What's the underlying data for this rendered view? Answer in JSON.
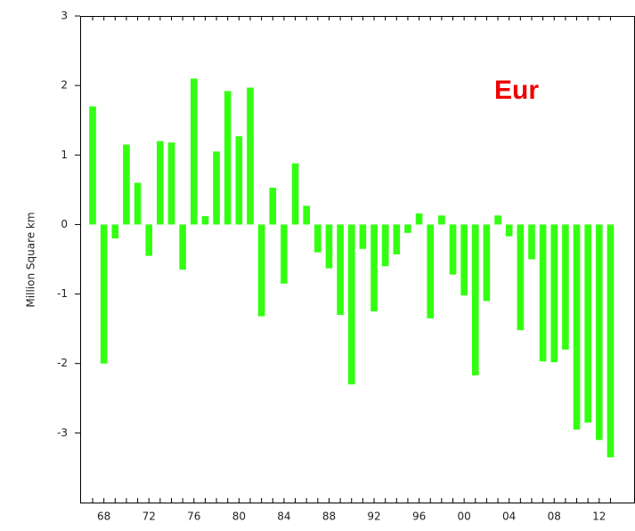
{
  "chart_data": {
    "type": "bar",
    "ylabel": "Million Square km",
    "annotation": "Eur",
    "categories": [
      null,
      "68",
      null,
      null,
      null,
      "72",
      null,
      null,
      null,
      "76",
      null,
      null,
      null,
      "80",
      null,
      null,
      null,
      "84",
      null,
      null,
      null,
      "88",
      null,
      null,
      null,
      "92",
      null,
      null,
      null,
      "96",
      null,
      null,
      null,
      "00",
      null,
      null,
      null,
      "04",
      null,
      null,
      null,
      "08",
      null,
      null,
      null,
      "12",
      null
    ],
    "values": [
      1.7,
      -2.0,
      -0.2,
      1.15,
      0.6,
      -0.45,
      1.2,
      1.18,
      -0.65,
      2.1,
      0.12,
      1.05,
      1.92,
      1.27,
      1.97,
      -1.32,
      0.53,
      -0.85,
      0.88,
      0.27,
      -0.4,
      -0.63,
      -1.3,
      -2.3,
      -0.35,
      -1.25,
      -0.6,
      -0.43,
      -0.12,
      0.16,
      -1.35,
      0.13,
      -0.72,
      -1.02,
      -2.17,
      -1.1,
      0.13,
      -0.17,
      -1.52,
      -0.5,
      -1.97,
      -1.98,
      -1.8,
      -2.95,
      -2.85,
      -3.1,
      -3.35
    ],
    "color": "#33ff11",
    "ylim": [
      -4,
      3
    ],
    "yticks": [
      -3,
      -2,
      -1,
      0,
      1,
      2,
      3
    ],
    "grid": false
  }
}
